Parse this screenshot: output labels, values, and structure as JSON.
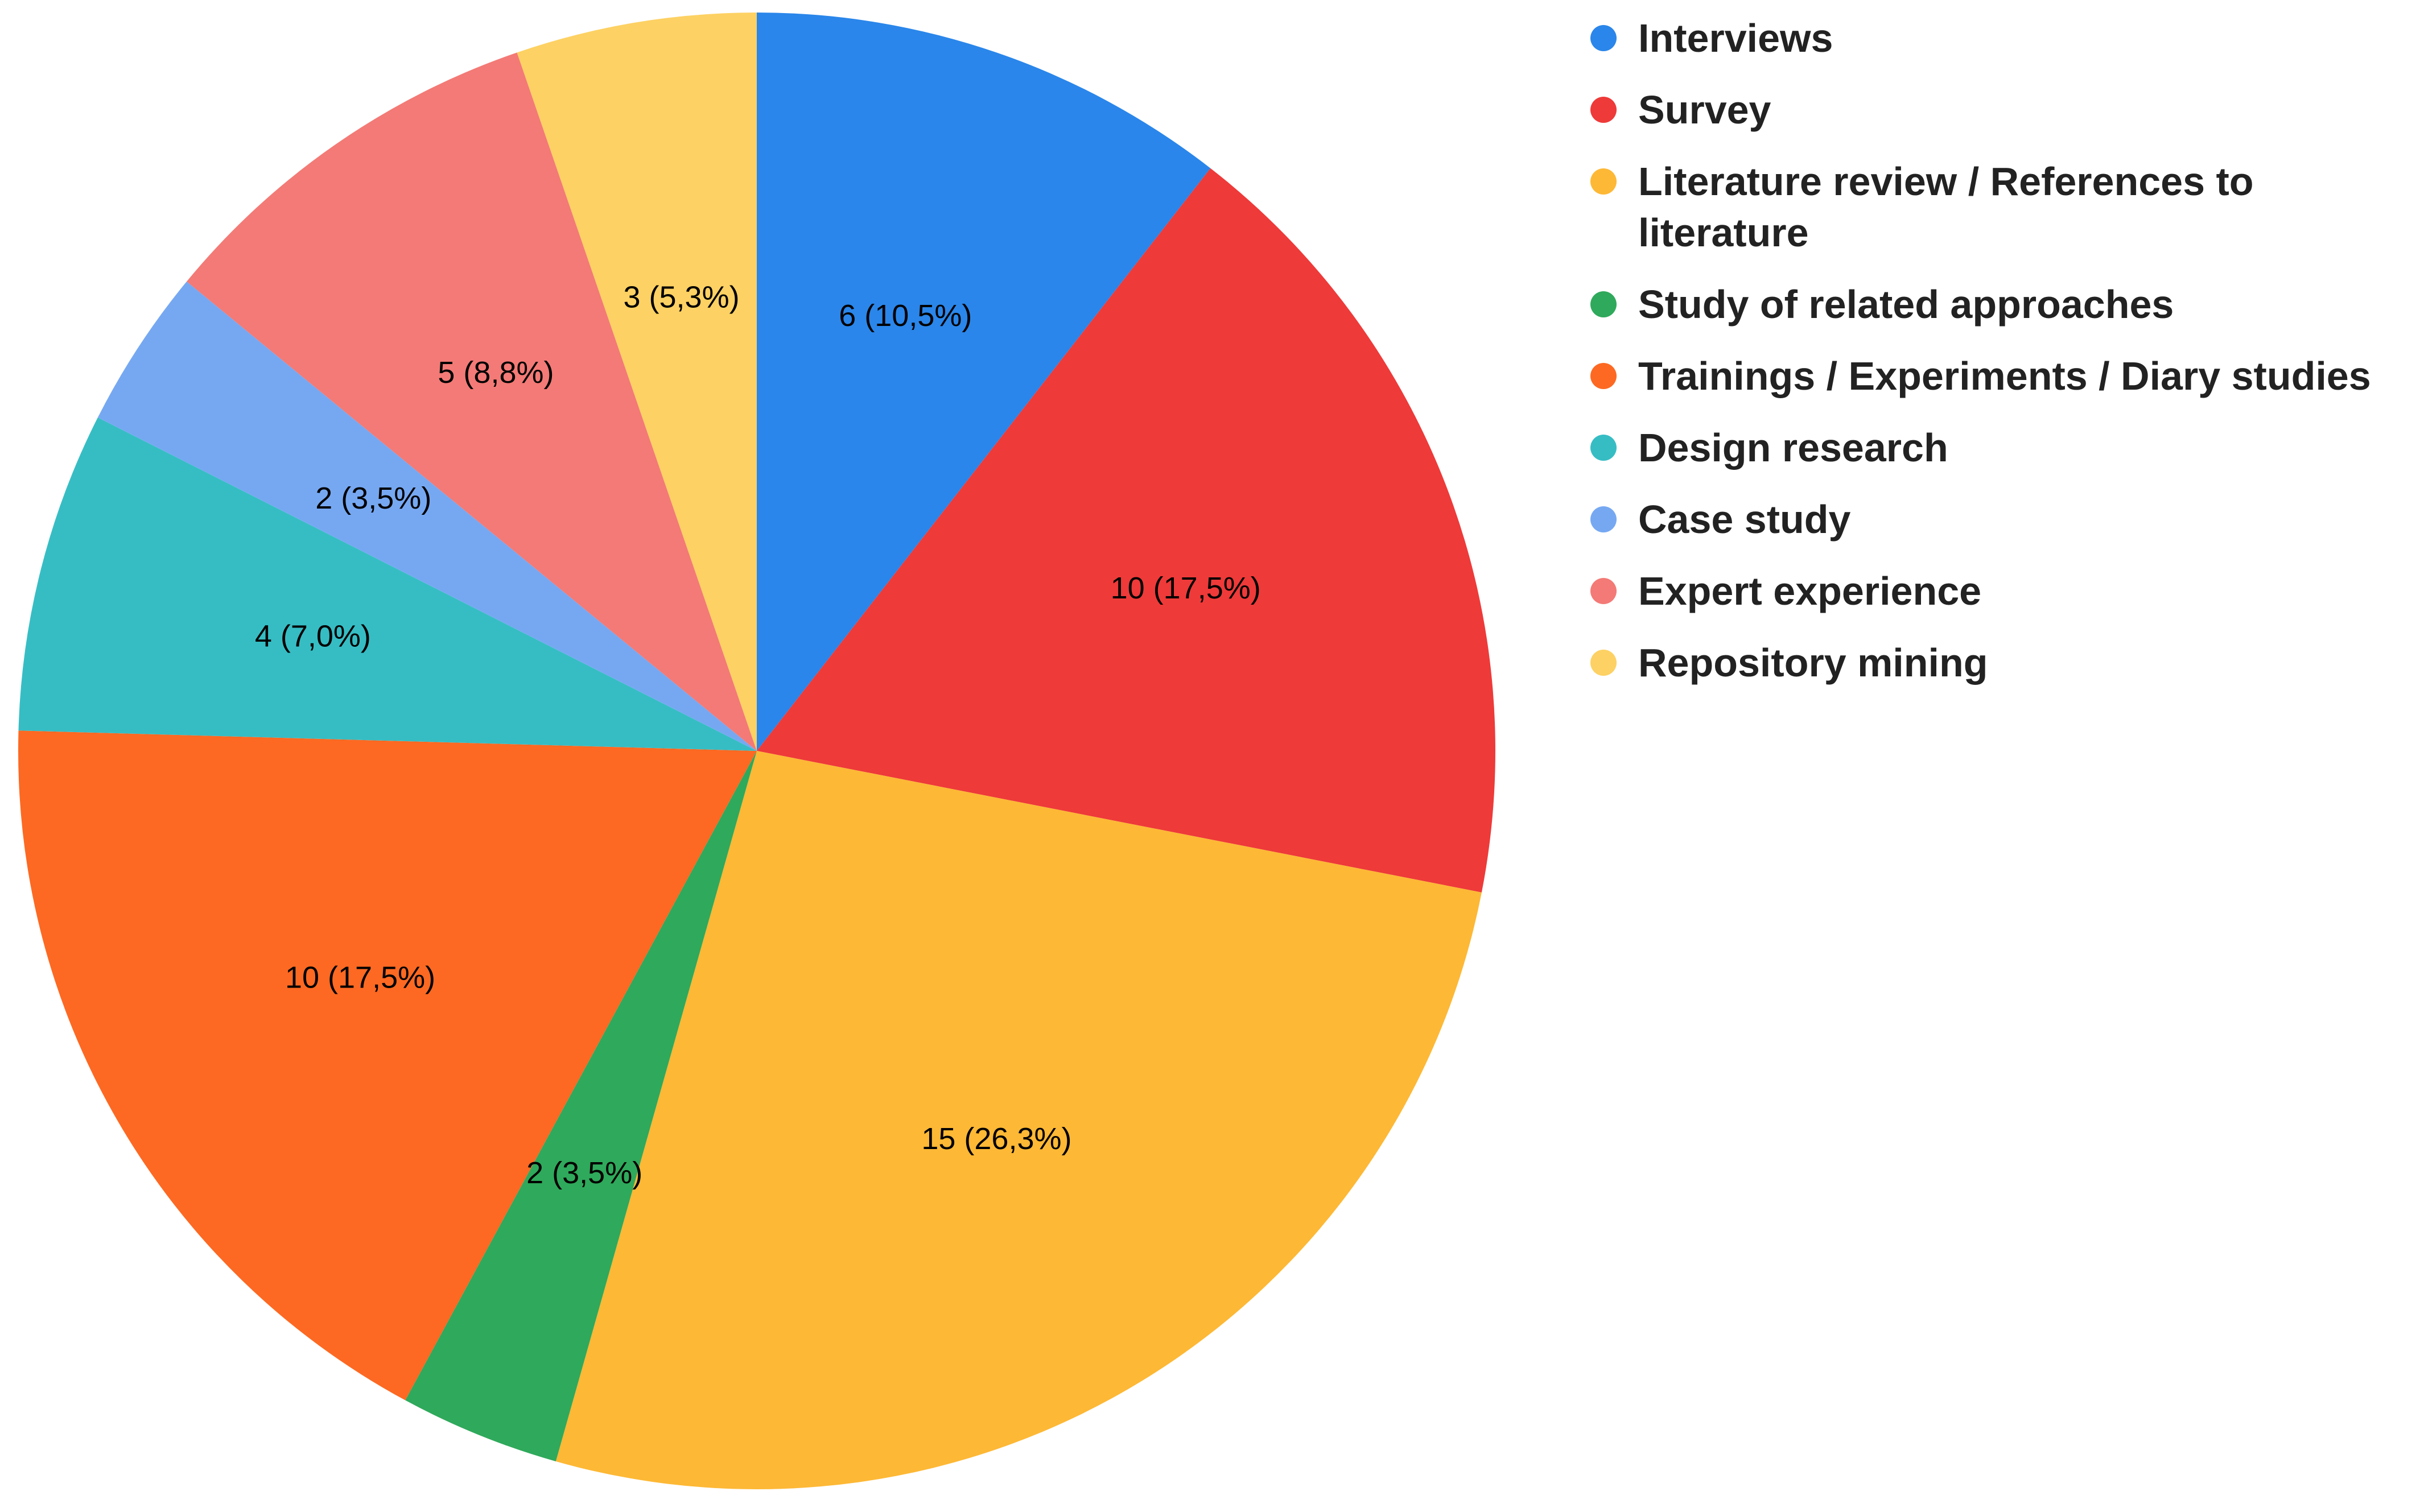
{
  "chart_data": {
    "type": "pie",
    "title": "",
    "legend_position": "right",
    "start_angle": "top",
    "direction": "clockwise",
    "slices": [
      {
        "name": "Interviews",
        "value": 6,
        "label": "6 (10,5%)",
        "color": "#2a86ea"
      },
      {
        "name": "Survey",
        "value": 10,
        "label": "10 (17,5%)",
        "color": "#ee3a39"
      },
      {
        "name": "Literature review / References to literature",
        "value": 15,
        "label": "15 (26,3%)",
        "color": "#fdb835"
      },
      {
        "name": "Study of related approaches",
        "value": 2,
        "label": "2 (3,5%)",
        "color": "#2fa95b"
      },
      {
        "name": "Trainings / Experiments / Diary studies",
        "value": 10,
        "label": "10 (17,5%)",
        "color": "#fd6922"
      },
      {
        "name": "Design research",
        "value": 4,
        "label": "4 (7,0%)",
        "color": "#36bdc4"
      },
      {
        "name": "Case study",
        "value": 2,
        "label": "2 (3,5%)",
        "color": "#76a8f2"
      },
      {
        "name": "Expert experience",
        "value": 5,
        "label": "5 (8,8%)",
        "color": "#f37a76"
      },
      {
        "name": "Repository mining",
        "value": 3,
        "label": "3 (5,3%)",
        "color": "#fdd163"
      }
    ]
  }
}
